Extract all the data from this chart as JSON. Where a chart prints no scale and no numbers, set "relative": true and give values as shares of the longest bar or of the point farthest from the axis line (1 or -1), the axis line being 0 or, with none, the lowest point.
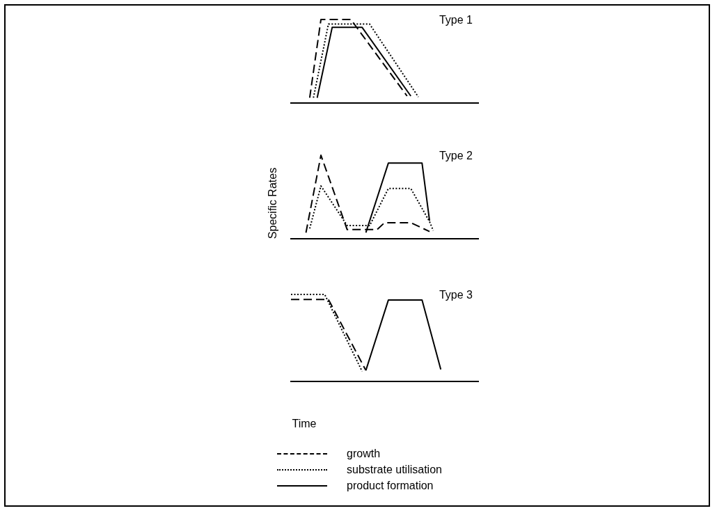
{
  "chart_data": [
    {
      "type": "line",
      "title": "Type 1",
      "relative": true,
      "categories": [
        null,
        null,
        null,
        null,
        null,
        null,
        null,
        null,
        null,
        null,
        null,
        null,
        null,
        null,
        null,
        null,
        null,
        null,
        null,
        null,
        null,
        null,
        null,
        null,
        null,
        null,
        null,
        null,
        null,
        null,
        null,
        null,
        null,
        null,
        null,
        null,
        null,
        null,
        null,
        null,
        null,
        null,
        null,
        null,
        null,
        null,
        null,
        null,
        null,
        null,
        null
      ],
      "series": [
        {
          "color": "#000000",
          "line_style": "dashed",
          "values": [
            null,
            null,
            null,
            null,
            null,
            0.06,
            null,
            null,
            1,
            null,
            null,
            null,
            null,
            null,
            null,
            null,
            1,
            null,
            null,
            null,
            null,
            null,
            null,
            null,
            null,
            null,
            null,
            null,
            null,
            null,
            null,
            0.08,
            null,
            null,
            null,
            null,
            null,
            null,
            null,
            null,
            null,
            null,
            null,
            null,
            null,
            null,
            null,
            null,
            null,
            null,
            null
          ]
        },
        {
          "color": "#000000",
          "line_style": "dotted",
          "values": [
            null,
            null,
            null,
            null,
            null,
            null,
            0.06,
            null,
            null,
            null,
            0.945,
            null,
            null,
            null,
            null,
            null,
            null,
            null,
            null,
            null,
            null,
            0.945,
            null,
            null,
            null,
            null,
            null,
            null,
            null,
            null,
            null,
            null,
            null,
            null,
            0.07,
            null,
            null,
            null,
            null,
            null,
            null,
            null,
            null,
            null,
            null,
            null,
            null,
            null,
            null,
            null,
            null
          ]
        },
        {
          "color": "#000000",
          "line_style": "solid",
          "values": [
            null,
            null,
            null,
            null,
            null,
            null,
            null,
            0.06,
            null,
            null,
            null,
            0.905,
            null,
            null,
            null,
            null,
            null,
            null,
            null,
            0.905,
            null,
            null,
            null,
            null,
            null,
            null,
            null,
            null,
            null,
            null,
            null,
            null,
            0.08,
            null,
            null,
            null,
            null,
            null,
            null,
            null,
            null,
            null,
            null,
            null,
            null,
            null,
            null,
            null,
            null,
            null,
            null
          ]
        }
      ]
    },
    {
      "type": "line",
      "title": "Type 2",
      "ylabel": "Specific Rates",
      "relative": true,
      "categories": [
        null,
        null,
        null,
        null,
        null,
        null,
        null,
        null,
        null,
        null,
        null,
        null,
        null,
        null,
        null,
        null,
        null,
        null,
        null,
        null,
        null,
        null,
        null,
        null,
        null,
        null,
        null,
        null,
        null,
        null,
        null,
        null,
        null,
        null,
        null,
        null,
        null,
        null,
        null,
        null,
        null,
        null,
        null,
        null,
        null,
        null,
        null,
        null,
        null,
        null,
        null
      ],
      "series": [
        {
          "color": "#000000",
          "line_style": "dashed",
          "values": [
            null,
            null,
            null,
            null,
            0.07,
            null,
            null,
            null,
            1,
            null,
            null,
            null,
            null,
            null,
            null,
            0.107,
            null,
            null,
            null,
            null,
            null,
            null,
            null,
            0.107,
            null,
            0.19,
            null,
            null,
            null,
            null,
            null,
            null,
            0.19,
            null,
            null,
            null,
            null,
            0.083,
            null,
            null,
            null,
            null,
            null,
            null,
            null,
            null,
            null,
            null,
            null,
            null,
            null
          ]
        },
        {
          "color": "#000000",
          "line_style": "dotted",
          "values": [
            null,
            null,
            null,
            null,
            null,
            0.119,
            null,
            null,
            0.631,
            null,
            null,
            null,
            null,
            null,
            null,
            0.155,
            null,
            null,
            null,
            null,
            null,
            0.155,
            null,
            null,
            null,
            null,
            0.6,
            null,
            null,
            null,
            null,
            null,
            0.6,
            null,
            null,
            null,
            null,
            0.202,
            0.095,
            null,
            null,
            null,
            null,
            null,
            null,
            null,
            null,
            null,
            null,
            null,
            null
          ]
        },
        {
          "color": "#000000",
          "line_style": "solid",
          "values": [
            null,
            null,
            null,
            null,
            null,
            null,
            null,
            null,
            null,
            null,
            null,
            null,
            null,
            null,
            null,
            null,
            null,
            null,
            null,
            null,
            0.071,
            null,
            null,
            null,
            null,
            null,
            0.905,
            null,
            null,
            null,
            null,
            null,
            null,
            null,
            null,
            0.905,
            null,
            0.214,
            null,
            null,
            null,
            null,
            null,
            null,
            null,
            null,
            null,
            null,
            null,
            null,
            null
          ]
        }
      ]
    },
    {
      "type": "line",
      "title": "Type 3",
      "xlabel": "Time",
      "relative": true,
      "legend": "bottom",
      "categories": [
        null,
        null,
        null,
        null,
        null,
        null,
        null,
        null,
        null,
        null,
        null,
        null,
        null,
        null,
        null,
        null,
        null,
        null,
        null,
        null,
        null,
        null,
        null,
        null,
        null,
        null,
        null,
        null,
        null,
        null,
        null,
        null,
        null,
        null,
        null,
        null,
        null,
        null,
        null,
        null,
        null,
        null,
        null,
        null,
        null,
        null,
        null,
        null,
        null,
        null,
        null
      ],
      "series": [
        {
          "name": "growth",
          "color": "#000000",
          "line_style": "dashed",
          "values": [
            0.942,
            null,
            null,
            null,
            null,
            null,
            null,
            null,
            null,
            null,
            0.942,
            null,
            null,
            null,
            null,
            null,
            null,
            null,
            null,
            null,
            0.124,
            null,
            null,
            null,
            null,
            null,
            null,
            null,
            null,
            null,
            null,
            null,
            null,
            null,
            null,
            null,
            null,
            null,
            null,
            null,
            null,
            null,
            null,
            null,
            null,
            null,
            null,
            null,
            null,
            null,
            null
          ]
        },
        {
          "name": "substrate utilisation",
          "color": "#000000",
          "line_style": "dotted",
          "values": [
            1,
            null,
            null,
            null,
            null,
            null,
            null,
            null,
            null,
            1,
            null,
            null,
            null,
            null,
            null,
            null,
            null,
            null,
            null,
            0.113,
            null,
            null,
            null,
            null,
            null,
            null,
            null,
            null,
            null,
            null,
            null,
            null,
            null,
            null,
            null,
            null,
            null,
            null,
            null,
            null,
            null,
            null,
            null,
            null,
            null,
            null,
            null,
            null,
            null,
            null,
            null
          ]
        },
        {
          "name": "product formation",
          "color": "#000000",
          "line_style": "solid",
          "values": [
            null,
            null,
            null,
            null,
            null,
            null,
            null,
            null,
            null,
            null,
            null,
            null,
            null,
            null,
            null,
            null,
            null,
            null,
            null,
            null,
            0.124,
            null,
            null,
            null,
            null,
            null,
            0.935,
            null,
            null,
            null,
            null,
            null,
            null,
            null,
            null,
            0.935,
            null,
            null,
            null,
            null,
            0.136,
            null,
            null,
            null,
            null,
            null,
            null,
            null,
            null,
            null,
            null
          ]
        }
      ]
    }
  ]
}
